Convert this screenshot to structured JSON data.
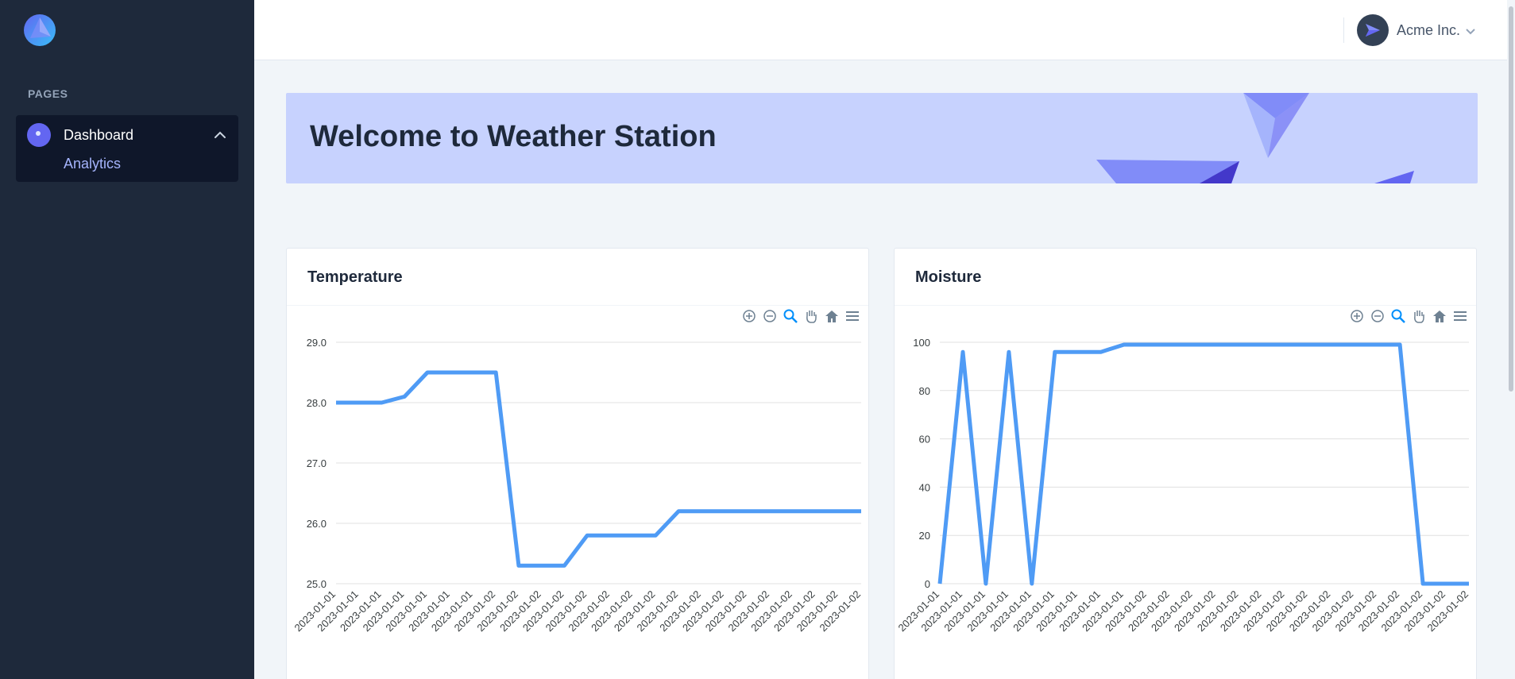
{
  "sidebar": {
    "section_label": "PAGES",
    "nav": {
      "title": "Dashboard",
      "sub_items": [
        {
          "label": "Analytics"
        }
      ]
    }
  },
  "header": {
    "account_name": "Acme Inc."
  },
  "banner": {
    "title": "Welcome to Weather Station"
  },
  "colors": {
    "sidebar": "#1e293b",
    "accent": "#6366f1",
    "line": "#4f9bf5",
    "banner": "#c7d2fe"
  },
  "icons": [
    "zoom-in-icon",
    "zoom-out-icon",
    "selection-zoom-icon",
    "pan-hand-icon",
    "home-icon",
    "menu-icon"
  ],
  "chart_data": [
    {
      "type": "line",
      "title": "Temperature",
      "categories": [
        "2023-01-01",
        "2023-01-01",
        "2023-01-01",
        "2023-01-01",
        "2023-01-01",
        "2023-01-01",
        "2023-01-01",
        "2023-01-02",
        "2023-01-02",
        "2023-01-02",
        "2023-01-02",
        "2023-01-02",
        "2023-01-02",
        "2023-01-02",
        "2023-01-02",
        "2023-01-02",
        "2023-01-02",
        "2023-01-02",
        "2023-01-02",
        "2023-01-02",
        "2023-01-02",
        "2023-01-02",
        "2023-01-02",
        "2023-01-02"
      ],
      "series": [
        {
          "values": [
            28.0,
            28.0,
            28.0,
            28.1,
            28.5,
            28.5,
            28.5,
            28.5,
            25.3,
            25.3,
            25.3,
            25.8,
            25.8,
            25.8,
            25.8,
            26.2,
            26.2,
            26.2,
            26.2,
            26.2,
            26.2,
            26.2,
            26.2,
            26.2
          ]
        }
      ],
      "yticks": [
        "29.0",
        "28.0",
        "27.0",
        "26.0",
        "25.0"
      ],
      "ylim": [
        25.0,
        29.0
      ],
      "grid": true
    },
    {
      "type": "line",
      "title": "Moisture",
      "categories": [
        "2023-01-01",
        "2023-01-01",
        "2023-01-01",
        "2023-01-01",
        "2023-01-01",
        "2023-01-01",
        "2023-01-01",
        "2023-01-01",
        "2023-01-01",
        "2023-01-02",
        "2023-01-02",
        "2023-01-02",
        "2023-01-02",
        "2023-01-02",
        "2023-01-02",
        "2023-01-02",
        "2023-01-02",
        "2023-01-02",
        "2023-01-02",
        "2023-01-02",
        "2023-01-02",
        "2023-01-02",
        "2023-01-02",
        "2023-01-02"
      ],
      "series": [
        {
          "values": [
            0,
            96,
            0,
            96,
            0,
            96,
            96,
            96,
            99,
            99,
            99,
            99,
            99,
            99,
            99,
            99,
            99,
            99,
            99,
            99,
            99,
            0,
            0,
            0
          ]
        }
      ],
      "yticks": [
        "100",
        "80",
        "60",
        "40",
        "20",
        "0"
      ],
      "ylim": [
        0,
        100
      ],
      "grid": true
    }
  ]
}
